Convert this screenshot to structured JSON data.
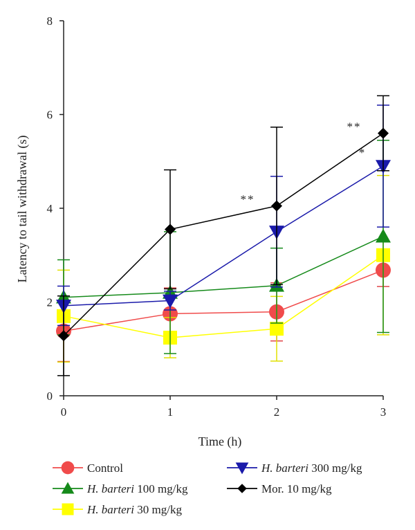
{
  "chart_data": {
    "type": "line",
    "xlabel": "Time (h)",
    "ylabel": "Latency to tail withdrawal (s)",
    "xlim": [
      0,
      3
    ],
    "ylim": [
      0,
      8
    ],
    "x_ticks": [
      "0",
      "1",
      "2",
      "3"
    ],
    "y_ticks": [
      "0",
      "2",
      "4",
      "6",
      "8"
    ],
    "grid": false,
    "legend_position": "bottom",
    "x": [
      0,
      1,
      2,
      3
    ],
    "series": [
      {
        "name": "Control",
        "name_parts": [
          {
            "text": "Control",
            "italic": false
          }
        ],
        "color": "#f04b4b",
        "error_color": "#e0464a",
        "marker": "circle",
        "values": [
          1.38,
          1.75,
          1.79,
          2.68
        ],
        "errors": [
          0.65,
          0.55,
          0.62,
          0.35
        ]
      },
      {
        "name": "H. barteri 100 mg/kg",
        "name_parts": [
          {
            "text": "H. barteri",
            "italic": true
          },
          {
            "text": " 100 mg/kg",
            "italic": false
          }
        ],
        "color": "#158a1a",
        "error_color": "#158a1a",
        "marker": "triangle-up",
        "values": [
          2.1,
          2.2,
          2.35,
          3.4
        ],
        "errors": [
          0.8,
          1.3,
          0.8,
          2.05
        ]
      },
      {
        "name": "H. barteri 30 mg/kg",
        "name_parts": [
          {
            "text": "H. barteri",
            "italic": true
          },
          {
            "text": " 30 mg/kg",
            "italic": false
          }
        ],
        "color": "#ffff00",
        "error_color": "#e0e000",
        "marker": "square",
        "values": [
          1.7,
          1.24,
          1.43,
          3.0
        ],
        "errors": [
          0.98,
          0.43,
          0.69,
          1.7
        ]
      },
      {
        "name": "H. barteri 300 mg/kg",
        "name_parts": [
          {
            "text": "H. barteri",
            "italic": true
          },
          {
            "text": " 300 mg/kg",
            "italic": false
          }
        ],
        "color": "#1a1aaa",
        "error_color": "#1a1aaa",
        "marker": "triangle-down",
        "values": [
          1.92,
          2.03,
          3.5,
          4.9
        ],
        "errors": [
          0.42,
          0.2,
          1.18,
          1.3
        ]
      },
      {
        "name": "Mor. 10 mg/kg",
        "name_parts": [
          {
            "text": "Mor. 10 mg/kg",
            "italic": false
          }
        ],
        "color": "#000000",
        "error_color": "#000000",
        "marker": "diamond",
        "values": [
          1.28,
          3.55,
          4.05,
          5.6
        ],
        "errors": [
          0.85,
          1.27,
          1.68,
          0.8
        ]
      }
    ],
    "annotations": [
      {
        "text": "**",
        "x": 2,
        "series": "Mor. 10 mg/kg"
      },
      {
        "text": "**",
        "x": 3,
        "series": "Mor. 10 mg/kg"
      },
      {
        "text": "*",
        "x": 3,
        "series": "H. barteri 300 mg/kg"
      }
    ]
  }
}
